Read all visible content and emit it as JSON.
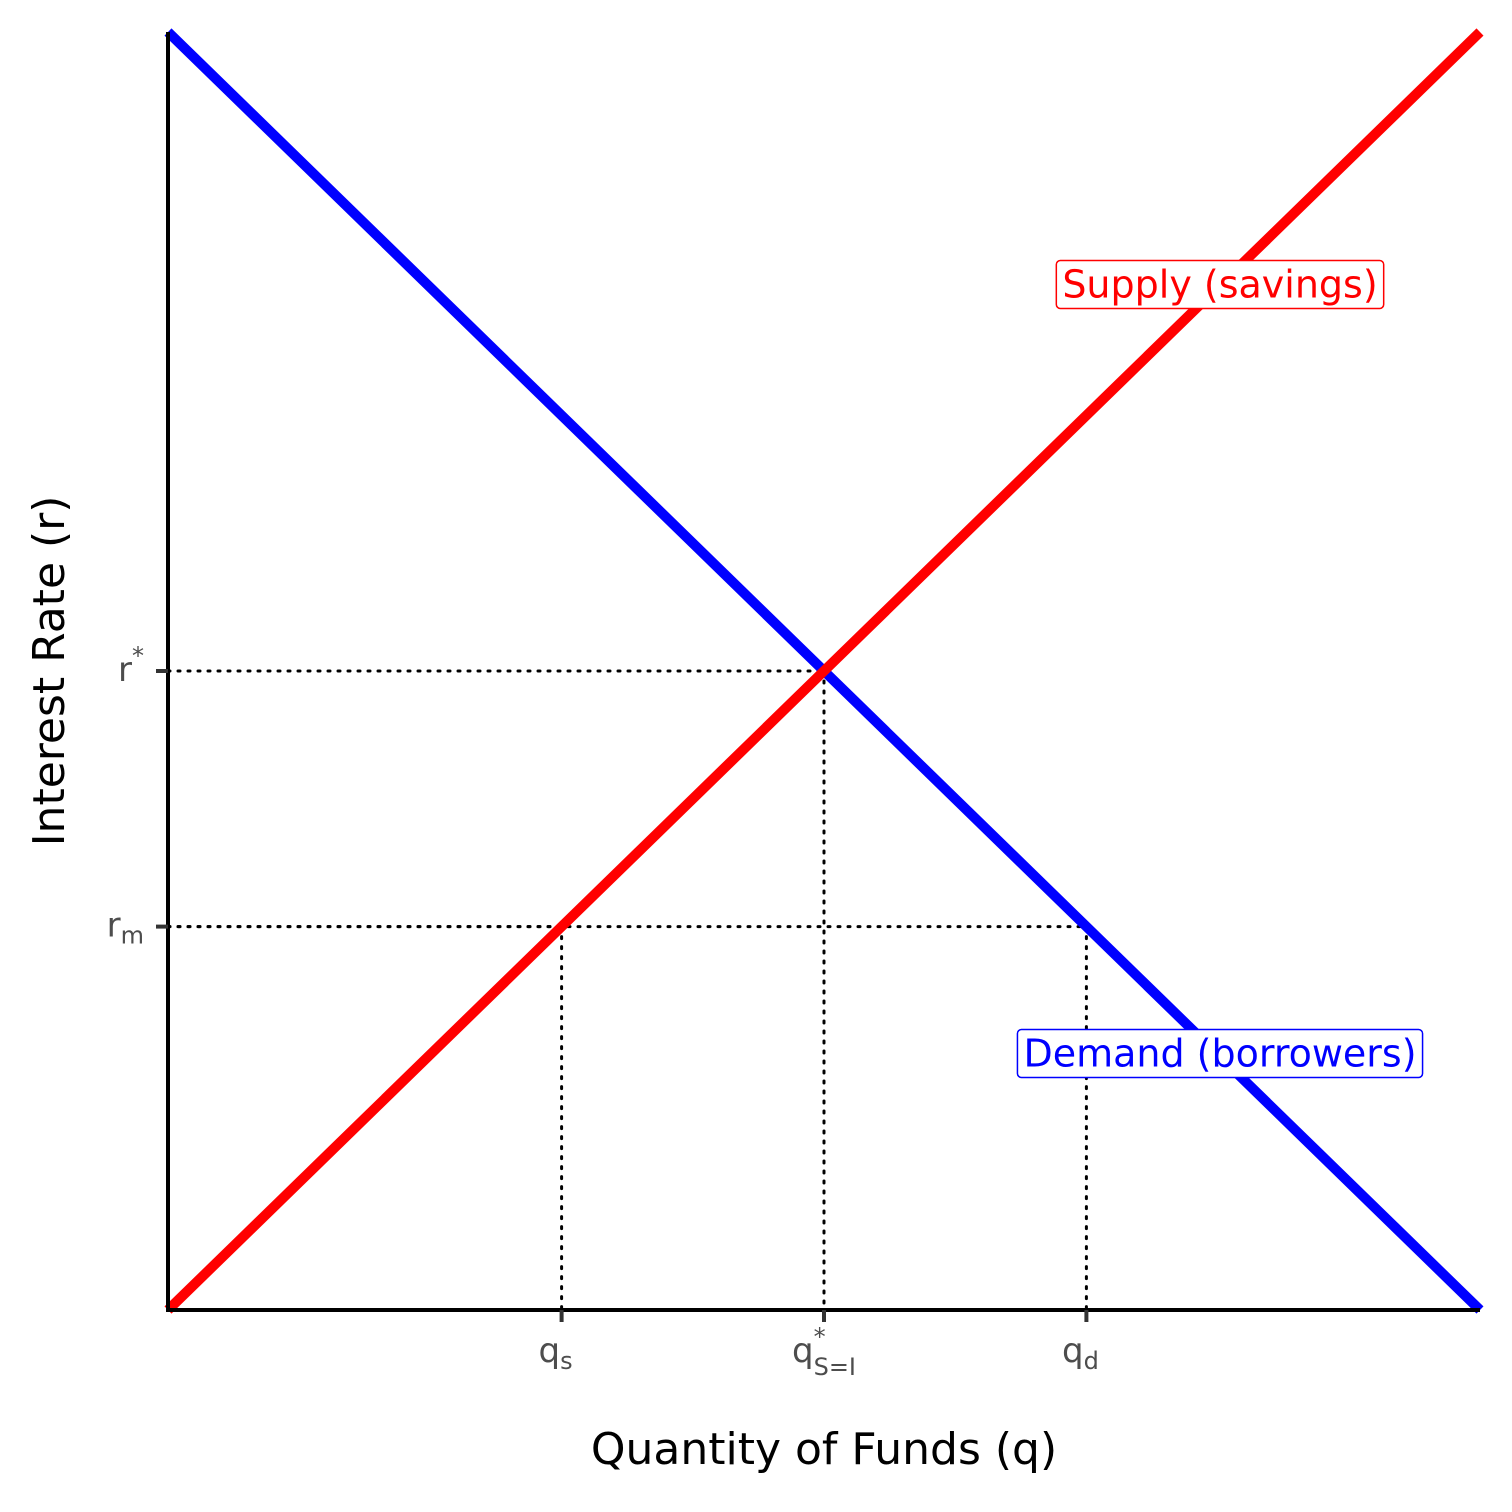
{
  "chart_data": {
    "type": "line",
    "x_label": "Quantity of Funds (q)",
    "y_label": "Interest Rate (r)",
    "xlim": [
      0,
      10
    ],
    "ylim": [
      0,
      10
    ],
    "xticks": [
      {
        "value": 3,
        "label": "q",
        "sub": "s"
      },
      {
        "value": 5,
        "label": "q",
        "sup": "*",
        "sub": "S=I"
      },
      {
        "value": 7,
        "label": "q",
        "sub": "d"
      }
    ],
    "yticks": [
      {
        "value": 3,
        "label": "r",
        "sub": "m"
      },
      {
        "value": 5,
        "label": "r",
        "sup": "*"
      }
    ],
    "series": [
      {
        "name": "Demand (borrowers)",
        "color": "#0000ff",
        "x": [
          0,
          10
        ],
        "values": [
          10,
          0
        ]
      },
      {
        "name": "Supply (savings)",
        "color": "#ff0000",
        "x": [
          0,
          10
        ],
        "values": [
          0,
          10
        ]
      }
    ],
    "guides": {
      "x": [
        5,
        3,
        7
      ],
      "values": [
        5,
        3,
        3
      ]
    }
  }
}
